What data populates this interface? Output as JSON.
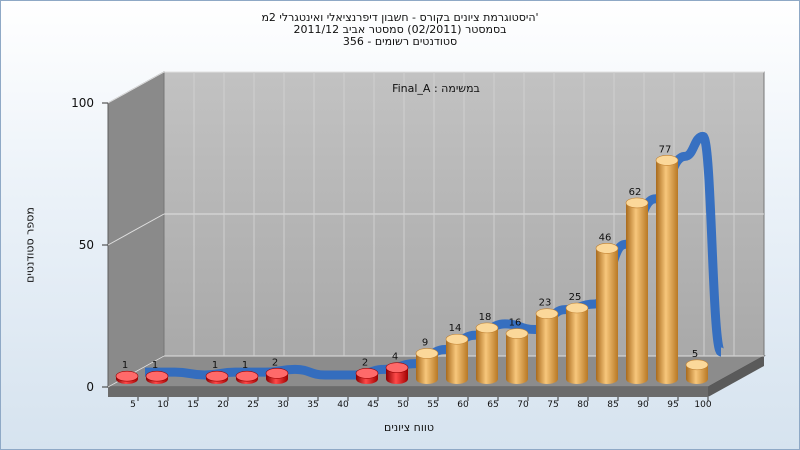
{
  "chart_data": {
    "type": "bar",
    "title_lines": [
      "היסטוגרמת ציונים בקורס - חשבון דיפרנציאלי ואינטגרלי 2מ'",
      "בסמסטר  (02/2011)  סמסטר אביב 2011/12",
      "סטודנטים רשומים - 356"
    ],
    "xlabel": "טווח ציונים",
    "ylabel": "מספר סטודנטים",
    "annotation": "Final_A : במשימה",
    "ylim": [
      0,
      100
    ],
    "yticks": [
      0,
      50,
      100
    ],
    "categories": [
      "5",
      "10",
      "15",
      "20",
      "25",
      "30",
      "35",
      "40",
      "45",
      "50",
      "55",
      "60",
      "65",
      "70",
      "75",
      "80",
      "85",
      "90",
      "95",
      "100"
    ],
    "values": [
      1,
      1,
      null,
      1,
      1,
      2,
      null,
      null,
      2,
      4,
      9,
      14,
      18,
      16,
      23,
      25,
      46,
      62,
      77,
      5
    ],
    "fail_threshold": 55,
    "colors": {
      "fail": "#d40000",
      "pass": "#e8a13c",
      "curve": "#2f6bc1",
      "wall_back": "#b9b9b9",
      "wall_side": "#8a8a8a"
    },
    "grid": true
  }
}
